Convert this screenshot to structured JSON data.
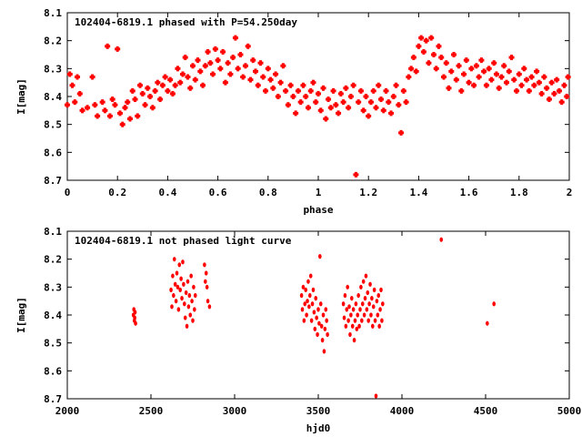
{
  "chart_data": [
    {
      "type": "scatter",
      "title": "102404-6819.1 phased with P=54.250day",
      "xlabel": "phase",
      "ylabel": "I[mag]",
      "xlim": [
        0,
        2
      ],
      "ylim": [
        8.7,
        8.1
      ],
      "y_inverted": true,
      "xticks": [
        "0",
        "0.2",
        "0.4",
        "0.6",
        "0.8",
        "1",
        "1.2",
        "1.4",
        "1.6",
        "1.8",
        "2"
      ],
      "yticks": [
        "8.1",
        "8.2",
        "8.3",
        "8.4",
        "8.5",
        "8.6",
        "8.7"
      ],
      "marker_color": "#ff0000",
      "points": [
        [
          0.0,
          8.43
        ],
        [
          0.01,
          8.32
        ],
        [
          0.02,
          8.36
        ],
        [
          0.03,
          8.42
        ],
        [
          0.04,
          8.33
        ],
        [
          0.05,
          8.39
        ],
        [
          0.06,
          8.45
        ],
        [
          0.08,
          8.44
        ],
        [
          0.1,
          8.33
        ],
        [
          0.11,
          8.43
        ],
        [
          0.12,
          8.47
        ],
        [
          0.14,
          8.42
        ],
        [
          0.15,
          8.45
        ],
        [
          0.16,
          8.22
        ],
        [
          0.17,
          8.47
        ],
        [
          0.18,
          8.41
        ],
        [
          0.19,
          8.43
        ],
        [
          0.2,
          8.23
        ],
        [
          0.21,
          8.46
        ],
        [
          0.22,
          8.5
        ],
        [
          0.23,
          8.44
        ],
        [
          0.24,
          8.42
        ],
        [
          0.25,
          8.48
        ],
        [
          0.26,
          8.38
        ],
        [
          0.27,
          8.41
        ],
        [
          0.28,
          8.47
        ],
        [
          0.29,
          8.36
        ],
        [
          0.3,
          8.39
        ],
        [
          0.31,
          8.43
        ],
        [
          0.32,
          8.37
        ],
        [
          0.33,
          8.4
        ],
        [
          0.34,
          8.44
        ],
        [
          0.35,
          8.38
        ],
        [
          0.36,
          8.35
        ],
        [
          0.37,
          8.41
        ],
        [
          0.38,
          8.36
        ],
        [
          0.39,
          8.33
        ],
        [
          0.4,
          8.38
        ],
        [
          0.41,
          8.34
        ],
        [
          0.42,
          8.39
        ],
        [
          0.43,
          8.36
        ],
        [
          0.44,
          8.3
        ],
        [
          0.45,
          8.35
        ],
        [
          0.46,
          8.32
        ],
        [
          0.47,
          8.26
        ],
        [
          0.48,
          8.33
        ],
        [
          0.49,
          8.37
        ],
        [
          0.5,
          8.29
        ],
        [
          0.51,
          8.34
        ],
        [
          0.52,
          8.27
        ],
        [
          0.53,
          8.31
        ],
        [
          0.54,
          8.36
        ],
        [
          0.55,
          8.29
        ],
        [
          0.56,
          8.24
        ],
        [
          0.57,
          8.28
        ],
        [
          0.58,
          8.32
        ],
        [
          0.59,
          8.23
        ],
        [
          0.6,
          8.27
        ],
        [
          0.61,
          8.3
        ],
        [
          0.62,
          8.24
        ],
        [
          0.63,
          8.35
        ],
        [
          0.64,
          8.28
        ],
        [
          0.65,
          8.32
        ],
        [
          0.66,
          8.26
        ],
        [
          0.67,
          8.19
        ],
        [
          0.68,
          8.3
        ],
        [
          0.69,
          8.25
        ],
        [
          0.7,
          8.33
        ],
        [
          0.71,
          8.29
        ],
        [
          0.72,
          8.22
        ],
        [
          0.73,
          8.34
        ],
        [
          0.74,
          8.27
        ],
        [
          0.75,
          8.31
        ],
        [
          0.76,
          8.36
        ],
        [
          0.77,
          8.28
        ],
        [
          0.78,
          8.33
        ],
        [
          0.79,
          8.38
        ],
        [
          0.8,
          8.3
        ],
        [
          0.81,
          8.34
        ],
        [
          0.82,
          8.37
        ],
        [
          0.83,
          8.32
        ],
        [
          0.84,
          8.4
        ],
        [
          0.85,
          8.35
        ],
        [
          0.86,
          8.29
        ],
        [
          0.87,
          8.38
        ],
        [
          0.88,
          8.43
        ],
        [
          0.89,
          8.36
        ],
        [
          0.9,
          8.4
        ],
        [
          0.91,
          8.46
        ],
        [
          0.92,
          8.38
        ],
        [
          0.93,
          8.42
        ],
        [
          0.94,
          8.36
        ],
        [
          0.95,
          8.4
        ],
        [
          0.96,
          8.44
        ],
        [
          0.97,
          8.38
        ],
        [
          0.98,
          8.35
        ],
        [
          0.99,
          8.42
        ],
        [
          1.0,
          8.39
        ],
        [
          1.01,
          8.45
        ],
        [
          1.02,
          8.37
        ],
        [
          1.03,
          8.48
        ],
        [
          1.04,
          8.41
        ],
        [
          1.05,
          8.44
        ],
        [
          1.06,
          8.38
        ],
        [
          1.07,
          8.43
        ],
        [
          1.08,
          8.46
        ],
        [
          1.09,
          8.39
        ],
        [
          1.1,
          8.42
        ],
        [
          1.11,
          8.37
        ],
        [
          1.12,
          8.44
        ],
        [
          1.13,
          8.4
        ],
        [
          1.14,
          8.36
        ],
        [
          1.15,
          8.68
        ],
        [
          1.16,
          8.42
        ],
        [
          1.17,
          8.38
        ],
        [
          1.18,
          8.45
        ],
        [
          1.19,
          8.4
        ],
        [
          1.2,
          8.47
        ],
        [
          1.21,
          8.42
        ],
        [
          1.22,
          8.38
        ],
        [
          1.23,
          8.44
        ],
        [
          1.24,
          8.36
        ],
        [
          1.25,
          8.41
        ],
        [
          1.26,
          8.45
        ],
        [
          1.27,
          8.38
        ],
        [
          1.28,
          8.42
        ],
        [
          1.29,
          8.46
        ],
        [
          1.3,
          8.4
        ],
        [
          1.31,
          8.36
        ],
        [
          1.32,
          8.43
        ],
        [
          1.33,
          8.53
        ],
        [
          1.34,
          8.38
        ],
        [
          1.35,
          8.42
        ],
        [
          1.36,
          8.33
        ],
        [
          1.37,
          8.3
        ],
        [
          1.38,
          8.26
        ],
        [
          1.39,
          8.31
        ],
        [
          1.4,
          8.22
        ],
        [
          1.41,
          8.19
        ],
        [
          1.42,
          8.24
        ],
        [
          1.43,
          8.2
        ],
        [
          1.44,
          8.28
        ],
        [
          1.45,
          8.19
        ],
        [
          1.46,
          8.25
        ],
        [
          1.47,
          8.3
        ],
        [
          1.48,
          8.22
        ],
        [
          1.49,
          8.26
        ],
        [
          1.5,
          8.33
        ],
        [
          1.51,
          8.28
        ],
        [
          1.52,
          8.37
        ],
        [
          1.53,
          8.31
        ],
        [
          1.54,
          8.25
        ],
        [
          1.55,
          8.34
        ],
        [
          1.56,
          8.29
        ],
        [
          1.57,
          8.38
        ],
        [
          1.58,
          8.32
        ],
        [
          1.59,
          8.27
        ],
        [
          1.6,
          8.35
        ],
        [
          1.61,
          8.3
        ],
        [
          1.62,
          8.36
        ],
        [
          1.63,
          8.29
        ],
        [
          1.64,
          8.33
        ],
        [
          1.65,
          8.27
        ],
        [
          1.66,
          8.31
        ],
        [
          1.67,
          8.36
        ],
        [
          1.68,
          8.3
        ],
        [
          1.69,
          8.34
        ],
        [
          1.7,
          8.28
        ],
        [
          1.71,
          8.32
        ],
        [
          1.72,
          8.37
        ],
        [
          1.73,
          8.33
        ],
        [
          1.74,
          8.29
        ],
        [
          1.75,
          8.35
        ],
        [
          1.76,
          8.31
        ],
        [
          1.77,
          8.26
        ],
        [
          1.78,
          8.34
        ],
        [
          1.79,
          8.38
        ],
        [
          1.8,
          8.32
        ],
        [
          1.81,
          8.36
        ],
        [
          1.82,
          8.3
        ],
        [
          1.83,
          8.34
        ],
        [
          1.84,
          8.38
        ],
        [
          1.85,
          8.33
        ],
        [
          1.86,
          8.36
        ],
        [
          1.87,
          8.31
        ],
        [
          1.88,
          8.35
        ],
        [
          1.89,
          8.39
        ],
        [
          1.9,
          8.33
        ],
        [
          1.91,
          8.37
        ],
        [
          1.92,
          8.41
        ],
        [
          1.93,
          8.35
        ],
        [
          1.94,
          8.39
        ],
        [
          1.95,
          8.34
        ],
        [
          1.96,
          8.38
        ],
        [
          1.97,
          8.42
        ],
        [
          1.98,
          8.36
        ],
        [
          1.99,
          8.4
        ],
        [
          1.995,
          8.33
        ]
      ]
    },
    {
      "type": "scatter",
      "title": "102404-6819.1 not phased light curve",
      "xlabel": "hjd0",
      "ylabel": "I[mag]",
      "xlim": [
        2000,
        5000
      ],
      "ylim": [
        8.7,
        8.1
      ],
      "y_inverted": true,
      "xticks": [
        "2000",
        "2500",
        "3000",
        "3500",
        "4000",
        "4500",
        "5000"
      ],
      "yticks": [
        "8.1",
        "8.2",
        "8.3",
        "8.4",
        "8.5",
        "8.6",
        "8.7"
      ],
      "marker_color": "#ff0000",
      "points": [
        [
          2395,
          8.4
        ],
        [
          2398,
          8.38
        ],
        [
          2401,
          8.42
        ],
        [
          2403,
          8.41
        ],
        [
          2405,
          8.39
        ],
        [
          2408,
          8.43
        ],
        [
          2620,
          8.31
        ],
        [
          2625,
          8.37
        ],
        [
          2630,
          8.26
        ],
        [
          2635,
          8.33
        ],
        [
          2640,
          8.2
        ],
        [
          2645,
          8.29
        ],
        [
          2650,
          8.35
        ],
        [
          2655,
          8.25
        ],
        [
          2660,
          8.3
        ],
        [
          2665,
          8.38
        ],
        [
          2670,
          8.22
        ],
        [
          2675,
          8.31
        ],
        [
          2680,
          8.27
        ],
        [
          2685,
          8.34
        ],
        [
          2690,
          8.21
        ],
        [
          2695,
          8.29
        ],
        [
          2700,
          8.36
        ],
        [
          2705,
          8.41
        ],
        [
          2710,
          8.32
        ],
        [
          2715,
          8.44
        ],
        [
          2720,
          8.28
        ],
        [
          2725,
          8.37
        ],
        [
          2730,
          8.33
        ],
        [
          2735,
          8.4
        ],
        [
          2740,
          8.26
        ],
        [
          2745,
          8.35
        ],
        [
          2750,
          8.42
        ],
        [
          2755,
          8.3
        ],
        [
          2760,
          8.38
        ],
        [
          2765,
          8.33
        ],
        [
          2820,
          8.22
        ],
        [
          2825,
          8.28
        ],
        [
          2830,
          8.25
        ],
        [
          2835,
          8.3
        ],
        [
          2840,
          8.35
        ],
        [
          2850,
          8.37
        ],
        [
          3400,
          8.33
        ],
        [
          3405,
          8.38
        ],
        [
          3410,
          8.3
        ],
        [
          3415,
          8.42
        ],
        [
          3420,
          8.36
        ],
        [
          3425,
          8.31
        ],
        [
          3430,
          8.4
        ],
        [
          3435,
          8.35
        ],
        [
          3440,
          8.28
        ],
        [
          3445,
          8.37
        ],
        [
          3450,
          8.33
        ],
        [
          3455,
          8.26
        ],
        [
          3460,
          8.42
        ],
        [
          3465,
          8.36
        ],
        [
          3470,
          8.31
        ],
        [
          3475,
          8.39
        ],
        [
          3480,
          8.45
        ],
        [
          3485,
          8.34
        ],
        [
          3490,
          8.41
        ],
        [
          3495,
          8.47
        ],
        [
          3500,
          8.38
        ],
        [
          3505,
          8.43
        ],
        [
          3510,
          8.19
        ],
        [
          3515,
          8.36
        ],
        [
          3520,
          8.44
        ],
        [
          3525,
          8.49
        ],
        [
          3530,
          8.4
        ],
        [
          3535,
          8.53
        ],
        [
          3540,
          8.45
        ],
        [
          3545,
          8.38
        ],
        [
          3550,
          8.42
        ],
        [
          3555,
          8.47
        ],
        [
          3650,
          8.36
        ],
        [
          3655,
          8.41
        ],
        [
          3660,
          8.33
        ],
        [
          3665,
          8.44
        ],
        [
          3670,
          8.38
        ],
        [
          3675,
          8.3
        ],
        [
          3680,
          8.42
        ],
        [
          3685,
          8.37
        ],
        [
          3690,
          8.47
        ],
        [
          3695,
          8.4
        ],
        [
          3700,
          8.34
        ],
        [
          3705,
          8.44
        ],
        [
          3710,
          8.38
        ],
        [
          3715,
          8.49
        ],
        [
          3720,
          8.42
        ],
        [
          3725,
          8.36
        ],
        [
          3730,
          8.45
        ],
        [
          3735,
          8.4
        ],
        [
          3740,
          8.33
        ],
        [
          3745,
          8.44
        ],
        [
          3750,
          8.38
        ],
        [
          3755,
          8.3
        ],
        [
          3760,
          8.42
        ],
        [
          3765,
          8.36
        ],
        [
          3770,
          8.28
        ],
        [
          3775,
          8.4
        ],
        [
          3780,
          8.34
        ],
        [
          3785,
          8.26
        ],
        [
          3790,
          8.38
        ],
        [
          3795,
          8.32
        ],
        [
          3800,
          8.42
        ],
        [
          3805,
          8.36
        ],
        [
          3810,
          8.29
        ],
        [
          3815,
          8.4
        ],
        [
          3820,
          8.34
        ],
        [
          3825,
          8.44
        ],
        [
          3830,
          8.37
        ],
        [
          3835,
          8.31
        ],
        [
          3840,
          8.42
        ],
        [
          3845,
          8.69
        ],
        [
          3850,
          8.35
        ],
        [
          3855,
          8.4
        ],
        [
          3860,
          8.33
        ],
        [
          3865,
          8.44
        ],
        [
          3870,
          8.38
        ],
        [
          3875,
          8.31
        ],
        [
          3880,
          8.42
        ],
        [
          3885,
          8.36
        ],
        [
          4235,
          8.13
        ],
        [
          4510,
          8.43
        ],
        [
          4550,
          8.36
        ]
      ]
    }
  ]
}
